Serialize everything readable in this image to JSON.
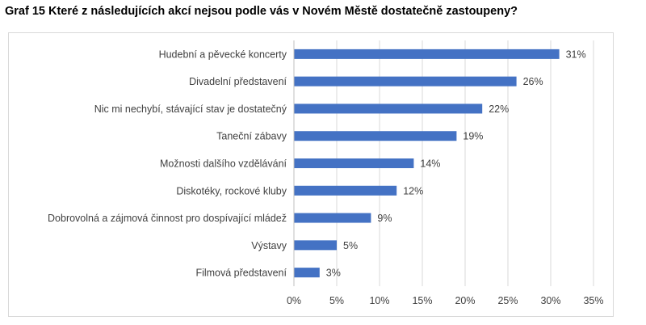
{
  "title": "Graf 15 Které z následujících akcí nejsou podle vás v Novém Městě dostatečně zastoupeny?",
  "chart_data": {
    "type": "bar",
    "orientation": "horizontal",
    "categories": [
      "Hudební a pěvecké koncerty",
      "Divadelní představení",
      "Nic mi nechybí, stávající stav je dostatečný",
      "Taneční zábavy",
      "Možnosti dalšího vzdělávání",
      "Diskotéky, rockové kluby",
      "Dobrovolná a zájmová činnost pro dospívající mládež",
      "Výstavy",
      "Filmová představení"
    ],
    "values": [
      31,
      26,
      22,
      19,
      14,
      12,
      9,
      5,
      3
    ],
    "value_labels": [
      "31%",
      "26%",
      "22%",
      "19%",
      "14%",
      "12%",
      "9%",
      "5%",
      "3%"
    ],
    "xlim": [
      0,
      35
    ],
    "x_ticks": [
      "0%",
      "5%",
      "10%",
      "15%",
      "20%",
      "25%",
      "30%",
      "35%"
    ],
    "grid": "vertical",
    "legend": "none",
    "bar_color": "#4472c4",
    "gridline_color": "#d9d9d9"
  }
}
